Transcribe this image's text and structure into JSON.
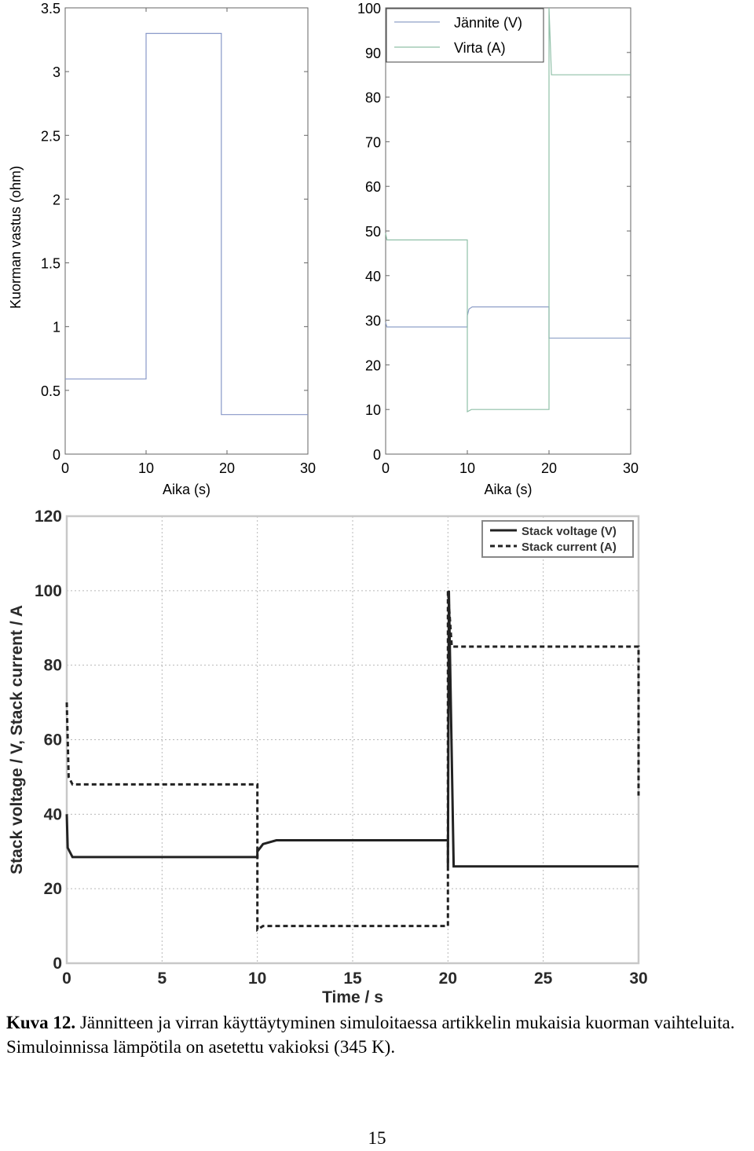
{
  "chart_data": [
    {
      "type": "line",
      "xlabel": "Aika (s)",
      "ylabel": "Kuorman vastus (ohm)",
      "xlim": [
        0,
        30
      ],
      "ylim": [
        0,
        3.5
      ],
      "xticks": [
        "0",
        "10",
        "20",
        "30"
      ],
      "yticks": [
        "0",
        "0.5",
        "1",
        "1.5",
        "2",
        "2.5",
        "3",
        "3.5"
      ],
      "grid": false,
      "series": [
        {
          "color": "#8898c8",
          "x": [
            0,
            10,
            10,
            19.3,
            19.3,
            30
          ],
          "y": [
            0.59,
            0.59,
            3.3,
            3.3,
            0.31,
            0.31
          ]
        }
      ]
    },
    {
      "type": "line",
      "xlabel": "Aika (s)",
      "ylabel": "",
      "xlim": [
        0,
        30
      ],
      "ylim": [
        0,
        100
      ],
      "xticks": [
        "0",
        "10",
        "20",
        "30"
      ],
      "yticks": [
        "0",
        "10",
        "20",
        "30",
        "40",
        "50",
        "60",
        "70",
        "80",
        "90",
        "100"
      ],
      "grid": false,
      "legend": "top-right",
      "series": [
        {
          "name": "Jännite (V)",
          "color": "#8fa0c8",
          "x": [
            0,
            0.15,
            10,
            10,
            10.2,
            10.6,
            20,
            20,
            30
          ],
          "y": [
            29.5,
            28.5,
            28.5,
            31,
            32.5,
            33,
            33,
            26,
            26
          ]
        },
        {
          "name": "Virta (A)",
          "color": "#90c0a8",
          "x": [
            0,
            0.15,
            10,
            10,
            10.5,
            20,
            20,
            20.3,
            30
          ],
          "y": [
            49.5,
            48,
            48,
            9.5,
            10,
            10,
            100,
            85,
            85
          ]
        }
      ]
    },
    {
      "type": "line",
      "xlabel": "Time / s",
      "ylabel": "Stack voltage / V, Stack current / A",
      "xlim": [
        0,
        30
      ],
      "ylim": [
        0,
        120
      ],
      "xticks": [
        "0",
        "5",
        "10",
        "15",
        "20",
        "25",
        "30"
      ],
      "yticks": [
        "0",
        "20",
        "40",
        "60",
        "80",
        "100",
        "120"
      ],
      "grid": true,
      "legend": "top-right",
      "series": [
        {
          "name": "Stack voltage (V)",
          "dash": false,
          "x": [
            0,
            0.05,
            0.3,
            1,
            10,
            10,
            10.3,
            11,
            20,
            20,
            20.05,
            20.3,
            30
          ],
          "y": [
            40,
            31,
            28.5,
            28.5,
            28.5,
            30,
            32,
            33,
            33,
            26,
            100,
            26,
            26
          ]
        },
        {
          "name": "Stack current (A)",
          "dash": true,
          "x": [
            0,
            0.1,
            0.3,
            10,
            10,
            10.3,
            20,
            20,
            20.2,
            30,
            30
          ],
          "y": [
            70,
            50,
            48,
            48,
            9,
            10,
            10,
            100,
            85,
            85,
            45
          ]
        }
      ]
    }
  ],
  "caption": {
    "label": "Kuva 12.",
    "text": " Jännitteen ja virran käyttäytyminen simuloitaessa artikkelin mukaisia kuorman vaihteluita. Simuloinnissa lämpötila on asetettu vakioksi (345 K)."
  },
  "page_number": "15"
}
